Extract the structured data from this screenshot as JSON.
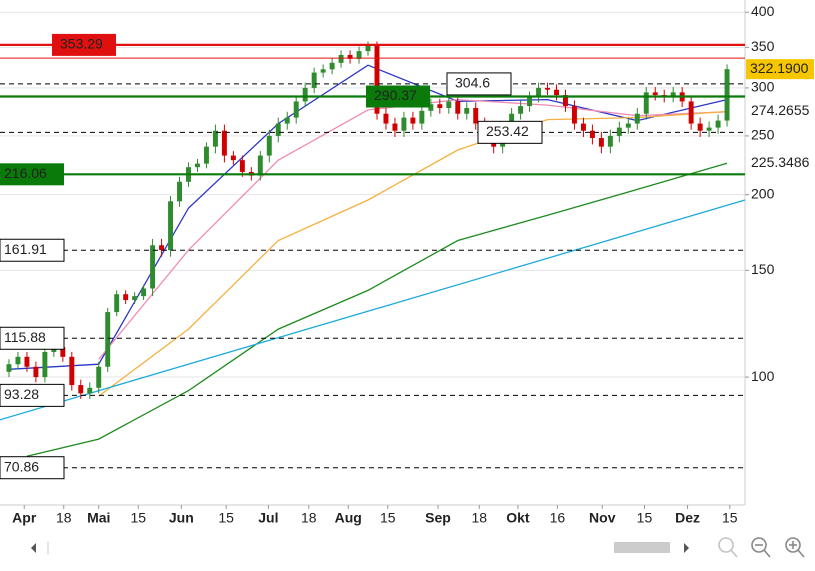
{
  "chart_data": {
    "type": "candlestick",
    "log_scale": true,
    "grid": true,
    "xlim": [
      -1,
      82
    ],
    "xticks": [
      {
        "value": 1.7,
        "label": "Apr"
      },
      {
        "value": 6.1,
        "label": "18"
      },
      {
        "value": 10,
        "label": "Mai"
      },
      {
        "value": 14.4,
        "label": "15"
      },
      {
        "value": 19.2,
        "label": "Jun"
      },
      {
        "value": 24.2,
        "label": "15"
      },
      {
        "value": 28.9,
        "label": "Jul"
      },
      {
        "value": 33.4,
        "label": "18"
      },
      {
        "value": 37.8,
        "label": "Aug"
      },
      {
        "value": 42.2,
        "label": "15"
      },
      {
        "value": 47.8,
        "label": "Sep"
      },
      {
        "value": 52.4,
        "label": "18"
      },
      {
        "value": 56.7,
        "label": "Okt"
      },
      {
        "value": 61.1,
        "label": "16"
      },
      {
        "value": 66.1,
        "label": "Nov"
      },
      {
        "value": 70.8,
        "label": "15"
      },
      {
        "value": 75.6,
        "label": "Dez"
      },
      {
        "value": 80.3,
        "label": "15"
      }
    ],
    "ylim": [
      61.5,
      419
    ],
    "yticks": [
      100,
      150,
      200,
      250,
      300,
      350,
      400
    ],
    "up_color": "#2e8b2e",
    "down_color": "#d00000",
    "open": [
      102,
      105,
      108,
      104,
      100,
      110,
      112,
      108,
      97,
      94,
      96,
      104,
      128,
      137,
      134,
      136,
      140,
      165,
      162,
      195,
      210,
      222,
      225,
      240,
      255,
      232,
      228,
      218,
      215,
      232,
      250,
      262,
      268,
      285,
      300,
      318,
      322,
      330,
      340,
      335,
      345,
      352,
      272,
      262,
      255,
      268,
      262,
      275,
      282,
      278,
      285,
      272,
      278,
      262,
      250,
      240,
      258,
      272,
      280,
      290,
      300,
      298,
      292,
      280,
      262,
      255,
      248,
      240,
      250,
      258,
      262,
      272,
      295,
      292,
      290,
      295,
      285,
      262,
      255,
      258,
      265
    ],
    "high": [
      107,
      110,
      110,
      106,
      112,
      114,
      114,
      110,
      99,
      98,
      106,
      130,
      139,
      139,
      138,
      142,
      169,
      169,
      199,
      214,
      226,
      229,
      244,
      261,
      261,
      236,
      232,
      222,
      236,
      256,
      268,
      274,
      291,
      306,
      324,
      328,
      336,
      346,
      346,
      351,
      358,
      358,
      278,
      268,
      274,
      274,
      281,
      288,
      288,
      291,
      291,
      284,
      284,
      268,
      256,
      264,
      278,
      286,
      296,
      306,
      306,
      304,
      298,
      286,
      268,
      261,
      254,
      256,
      264,
      268,
      278,
      301,
      301,
      298,
      301,
      301,
      291,
      268,
      264,
      271,
      328
    ],
    "low": [
      100,
      103,
      102,
      98,
      98,
      108,
      106,
      95,
      92,
      92,
      94,
      102,
      126,
      132,
      132,
      134,
      136,
      158,
      158,
      191,
      206,
      218,
      221,
      234,
      226,
      224,
      214,
      211,
      211,
      226,
      244,
      256,
      262,
      279,
      294,
      312,
      316,
      324,
      329,
      329,
      339,
      266,
      256,
      249,
      249,
      256,
      256,
      269,
      272,
      272,
      266,
      266,
      256,
      244,
      234,
      234,
      252,
      266,
      274,
      284,
      292,
      286,
      274,
      256,
      249,
      242,
      234,
      234,
      244,
      252,
      256,
      266,
      286,
      284,
      284,
      279,
      256,
      249,
      249,
      252,
      259
    ],
    "close": [
      105,
      108,
      104,
      100,
      110,
      112,
      108,
      97,
      94,
      96,
      104,
      128,
      137,
      134,
      136,
      140,
      165,
      162,
      195,
      210,
      222,
      225,
      240,
      255,
      232,
      228,
      218,
      215,
      232,
      250,
      262,
      268,
      285,
      300,
      318,
      322,
      330,
      340,
      335,
      345,
      352,
      272,
      262,
      255,
      268,
      262,
      275,
      282,
      278,
      285,
      272,
      278,
      262,
      250,
      240,
      258,
      272,
      280,
      290,
      300,
      298,
      292,
      280,
      262,
      255,
      248,
      240,
      250,
      258,
      262,
      272,
      295,
      292,
      290,
      295,
      285,
      262,
      255,
      258,
      265,
      322.19
    ],
    "last_close_label": "322.1900",
    "lines": [
      {
        "color": "#2a36c8",
        "x": [
          0,
          10,
          20,
          30,
          40,
          50,
          60,
          70,
          80
        ],
        "values": [
          103,
          105,
          190,
          262,
          327,
          285,
          287,
          265,
          287
        ]
      },
      {
        "color": "#f08cb4",
        "x": [
          10,
          20,
          30,
          40,
          50,
          60,
          70,
          80
        ],
        "values": [
          107,
          162,
          228,
          276,
          287,
          281,
          270,
          274
        ]
      },
      {
        "color": "#f5b041",
        "x": [
          10,
          20,
          30,
          40,
          50,
          60,
          70,
          80
        ],
        "values": [
          93,
          120,
          168,
          196,
          237,
          266,
          268,
          274.2655
        ]
      },
      {
        "color": "#1e8a1e",
        "x": [
          2,
          10,
          20,
          30,
          40,
          50,
          60,
          70,
          80
        ],
        "values": [
          74,
          79,
          95,
          120,
          139,
          168,
          185,
          204,
          225.3486
        ]
      },
      {
        "color": "#1eaadc",
        "x": [
          -1,
          82
        ],
        "values": [
          85,
          196
        ]
      }
    ],
    "levels": [
      {
        "value": 353.29,
        "color": "#e01010",
        "style": "solid"
      },
      {
        "value": 336,
        "color": "#e01010",
        "style": "thin"
      },
      {
        "value": 304.6,
        "color": "#000000",
        "style": "dashed"
      },
      {
        "value": 290.37,
        "color": "#0a7a0a",
        "style": "solid"
      },
      {
        "value": 253.42,
        "color": "#000000",
        "style": "dashed"
      },
      {
        "value": 216.06,
        "color": "#0a7a0a",
        "style": "solid"
      },
      {
        "value": 161.91,
        "color": "#000000",
        "style": "dashed"
      },
      {
        "value": 115.88,
        "color": "#000000",
        "style": "dashed"
      },
      {
        "value": 93.28,
        "color": "#000000",
        "style": "dashed"
      },
      {
        "value": 70.86,
        "color": "#000000",
        "style": "dashed"
      }
    ]
  }
}
